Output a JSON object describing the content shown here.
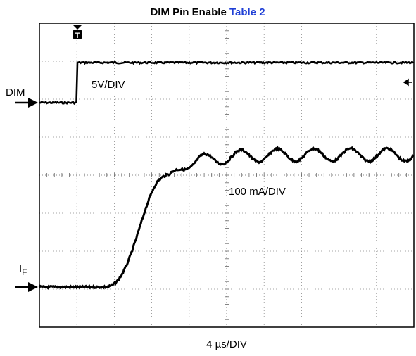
{
  "title": {
    "text": "DIM Pin Enable",
    "link": "Table 2"
  },
  "channels": {
    "dim": {
      "label": "DIM",
      "scale": "5V/DIV"
    },
    "current": {
      "label": "I",
      "subscript": "F",
      "scale": "100 mA/DIV"
    }
  },
  "timebase": "4 µs/DIV"
}
